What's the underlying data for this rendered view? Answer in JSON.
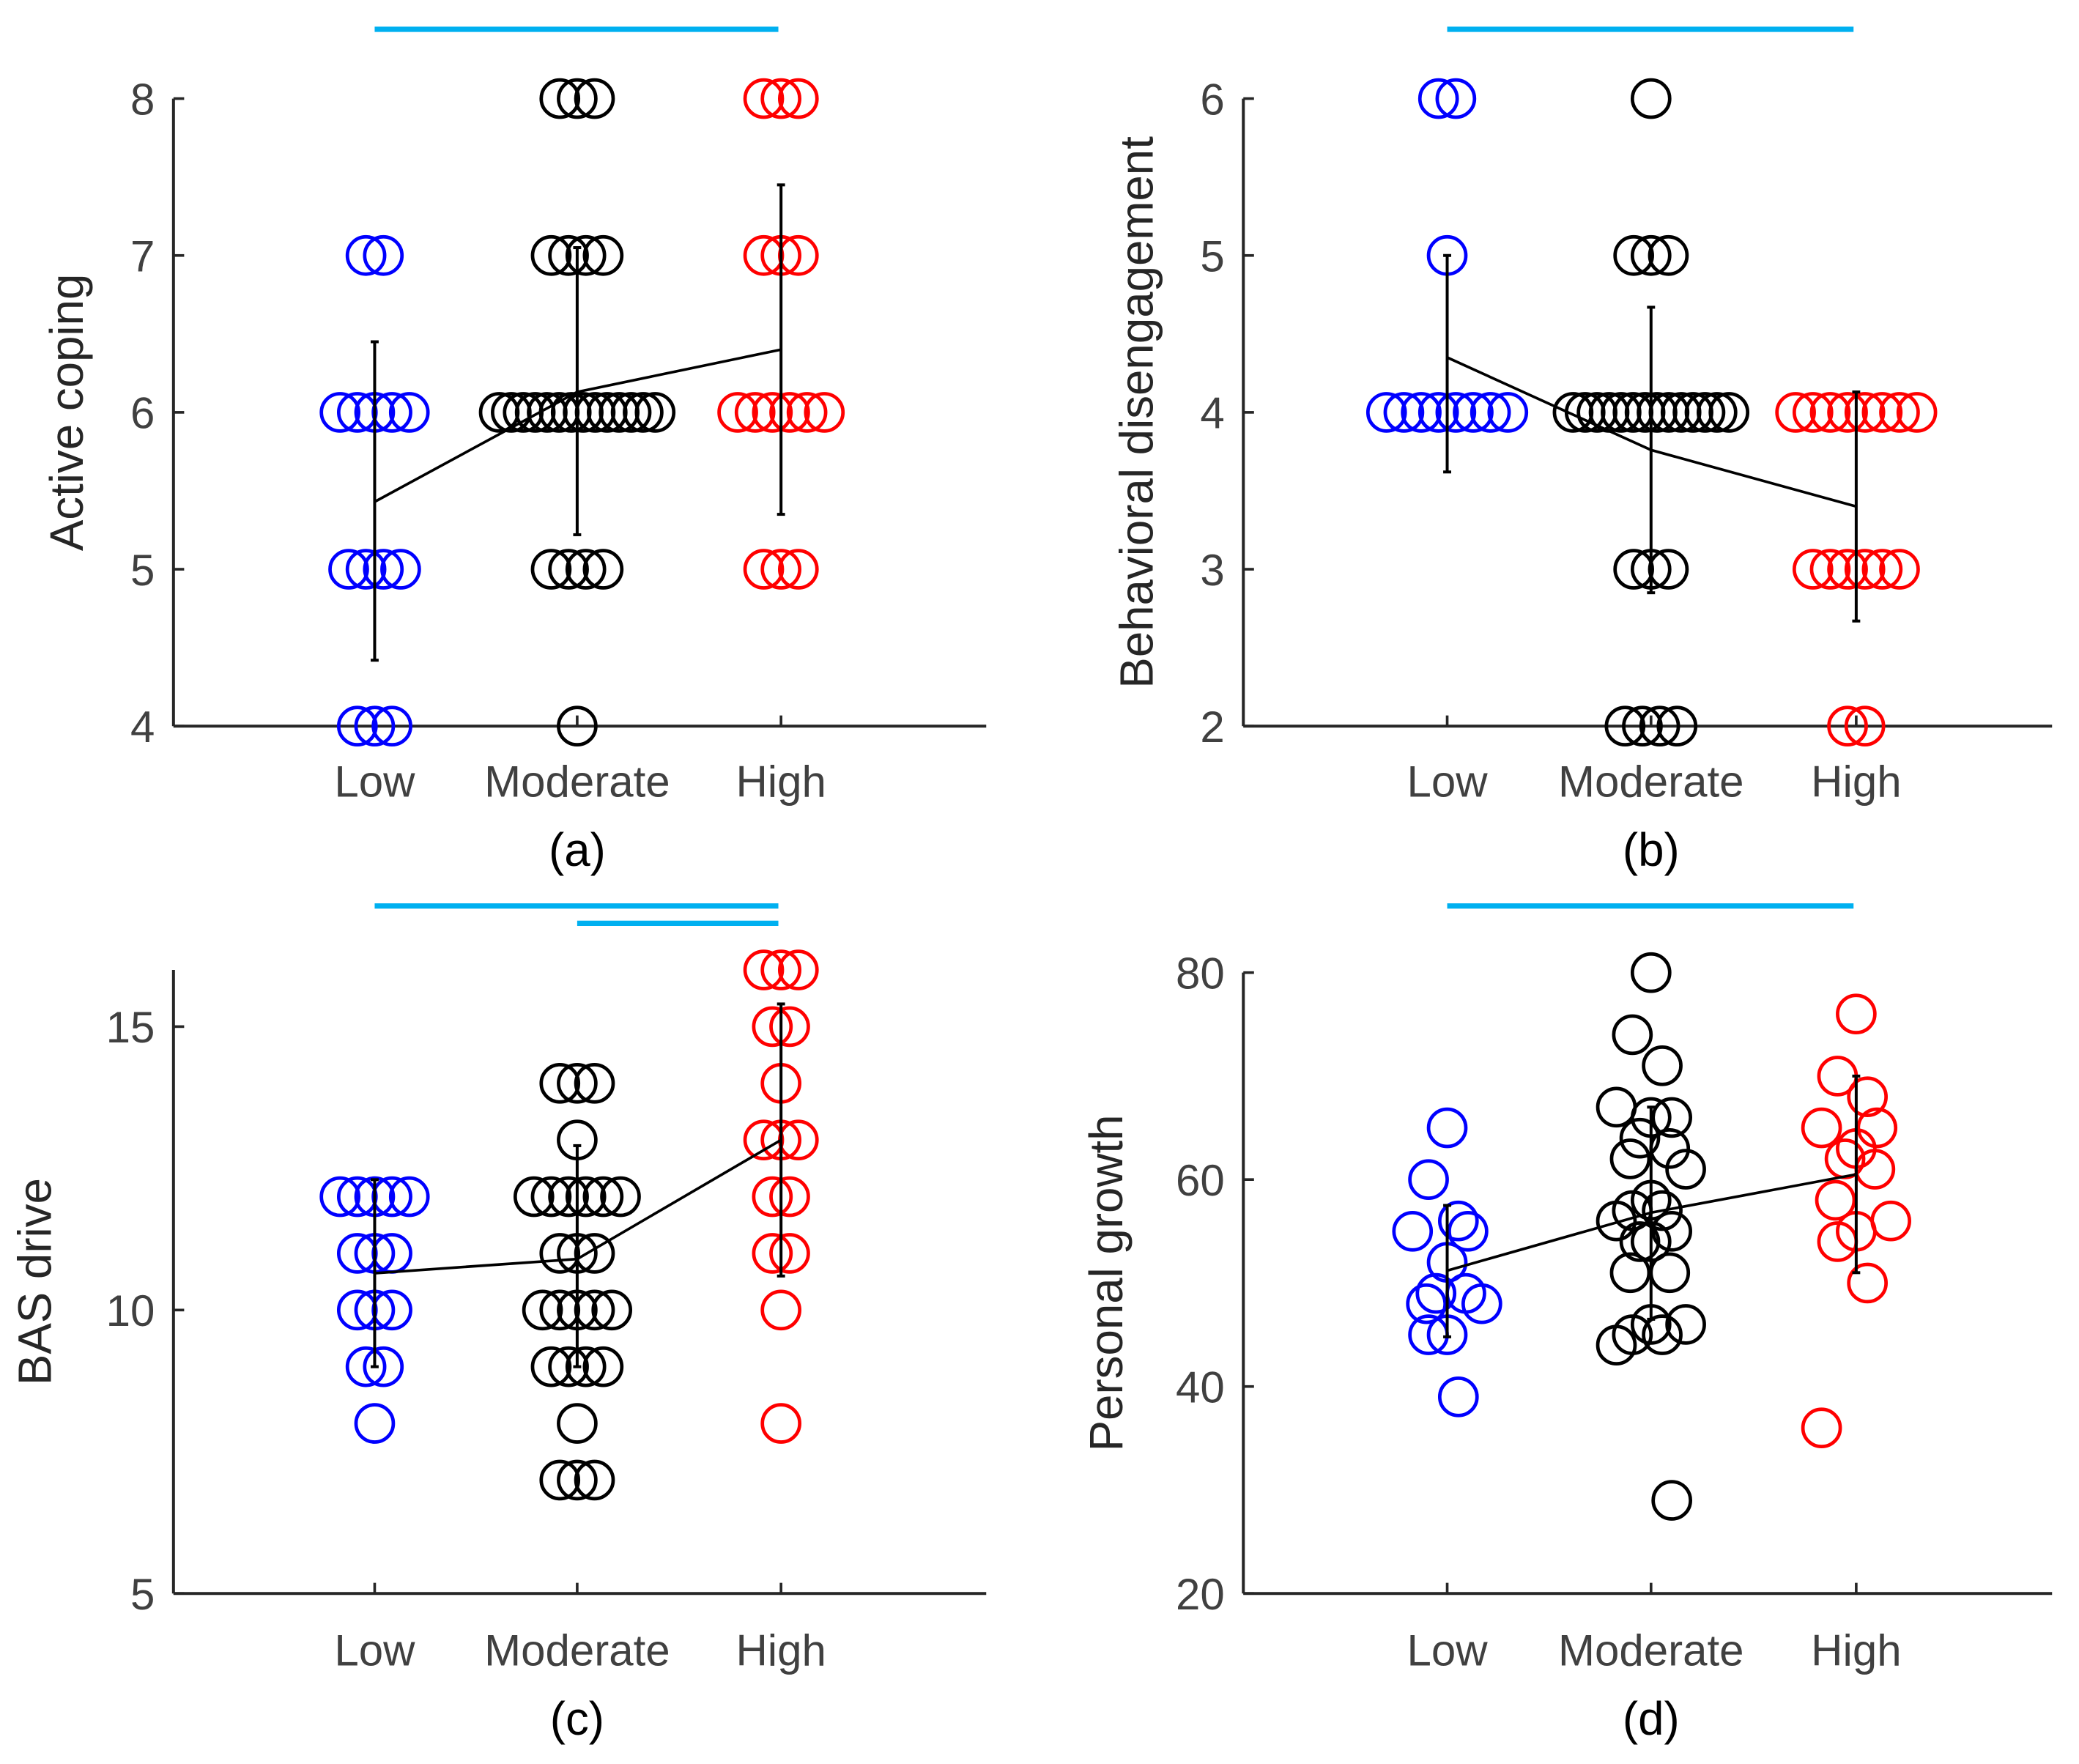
{
  "chart_data": [
    {
      "type": "scatter",
      "panel_label": "(a)",
      "ylabel": "Active coping",
      "categories": [
        "Low",
        "Moderate",
        "High"
      ],
      "ylim": [
        4,
        8
      ],
      "yticks": [
        4,
        5,
        6,
        7,
        8
      ],
      "colors": [
        "#0000ff",
        "#000000",
        "#ff0000"
      ],
      "significance_bars": [
        {
          "from": "Low",
          "to": "High",
          "color": "#00b0f0"
        }
      ],
      "points": [
        [
          7,
          7,
          6,
          6,
          6,
          6,
          6,
          5,
          5,
          5,
          5,
          4,
          4,
          4
        ],
        [
          8,
          8,
          8,
          7,
          7,
          7,
          7,
          6,
          6,
          6,
          6,
          6,
          6,
          6,
          6,
          6,
          6,
          6,
          6,
          6,
          6,
          5,
          5,
          5,
          5,
          4
        ],
        [
          8,
          8,
          8,
          7,
          7,
          7,
          6,
          6,
          6,
          6,
          6,
          6,
          5,
          5,
          5
        ]
      ],
      "means": [
        5.43,
        6.13,
        6.4
      ],
      "error_low": [
        4.42,
        5.22,
        5.35
      ],
      "error_high": [
        6.45,
        7.05,
        7.45
      ]
    },
    {
      "type": "scatter",
      "panel_label": "(b)",
      "ylabel": "Behavioral disengagement",
      "categories": [
        "Low",
        "Moderate",
        "High"
      ],
      "ylim": [
        2,
        6
      ],
      "yticks": [
        2,
        3,
        4,
        5,
        6
      ],
      "colors": [
        "#0000ff",
        "#000000",
        "#ff0000"
      ],
      "significance_bars": [
        {
          "from": "Low",
          "to": "High",
          "color": "#00b0f0"
        }
      ],
      "points": [
        [
          6,
          6,
          5,
          4,
          4,
          4,
          4,
          4,
          4,
          4,
          4
        ],
        [
          6,
          5,
          5,
          5,
          4,
          4,
          4,
          4,
          4,
          4,
          4,
          4,
          4,
          4,
          4,
          4,
          4,
          4,
          3,
          3,
          3,
          2,
          2,
          2,
          2
        ],
        [
          4,
          4,
          4,
          4,
          4,
          4,
          4,
          4,
          3,
          3,
          3,
          3,
          3,
          3,
          2,
          2
        ]
      ],
      "means": [
        4.35,
        3.76,
        3.4
      ],
      "error_low": [
        3.62,
        2.85,
        2.67
      ],
      "error_high": [
        5.0,
        4.67,
        4.13
      ]
    },
    {
      "type": "scatter",
      "panel_label": "(c)",
      "ylabel": "BAS drive",
      "categories": [
        "Low",
        "Moderate",
        "High"
      ],
      "ylim": [
        5,
        16
      ],
      "yticks": [
        5,
        10,
        15
      ],
      "colors": [
        "#0000ff",
        "#000000",
        "#ff0000"
      ],
      "significance_bars": [
        {
          "from": "Low",
          "to": "High",
          "color": "#00b0f0"
        },
        {
          "from": "Moderate",
          "to": "High",
          "color": "#00b0f0"
        }
      ],
      "points": [
        [
          12,
          12,
          12,
          12,
          12,
          11,
          11,
          11,
          10,
          10,
          10,
          9,
          9,
          8
        ],
        [
          14,
          14,
          14,
          13,
          12,
          12,
          12,
          12,
          12,
          12,
          11,
          11,
          11,
          10,
          10,
          10,
          10,
          10,
          9,
          9,
          9,
          9,
          8,
          7,
          7,
          7
        ],
        [
          16,
          16,
          16,
          15,
          15,
          14,
          13,
          13,
          13,
          12,
          12,
          11,
          11,
          10,
          8
        ]
      ],
      "means": [
        10.65,
        10.9,
        13.0
      ],
      "error_low": [
        9.0,
        9.0,
        10.6
      ],
      "error_high": [
        12.3,
        12.9,
        15.4
      ]
    },
    {
      "type": "scatter",
      "panel_label": "(d)",
      "ylabel": "Personal growth",
      "categories": [
        "Low",
        "Moderate",
        "High"
      ],
      "ylim": [
        20,
        80
      ],
      "yticks": [
        20,
        40,
        60,
        80
      ],
      "colors": [
        "#0000ff",
        "#000000",
        "#ff0000"
      ],
      "significance_bars": [
        {
          "from": "Low",
          "to": "High",
          "color": "#00b0f0"
        }
      ],
      "points": [
        [
          65,
          60,
          56,
          55,
          55,
          52,
          49,
          49,
          48,
          48,
          45,
          45,
          39
        ],
        [
          80,
          74,
          71,
          67,
          66,
          66,
          64,
          63,
          62,
          61,
          58,
          57,
          57,
          56,
          55,
          54,
          54,
          51,
          51,
          46,
          46,
          45,
          45,
          44,
          29
        ],
        [
          76,
          70,
          68,
          65,
          65,
          63,
          62,
          61,
          58,
          56,
          55,
          54,
          50,
          36
        ]
      ],
      "means": [
        51.2,
        56.8,
        60.5
      ],
      "error_low": [
        44.8,
        46.5,
        51.0
      ],
      "error_high": [
        57.5,
        67.0,
        70.0
      ]
    }
  ]
}
